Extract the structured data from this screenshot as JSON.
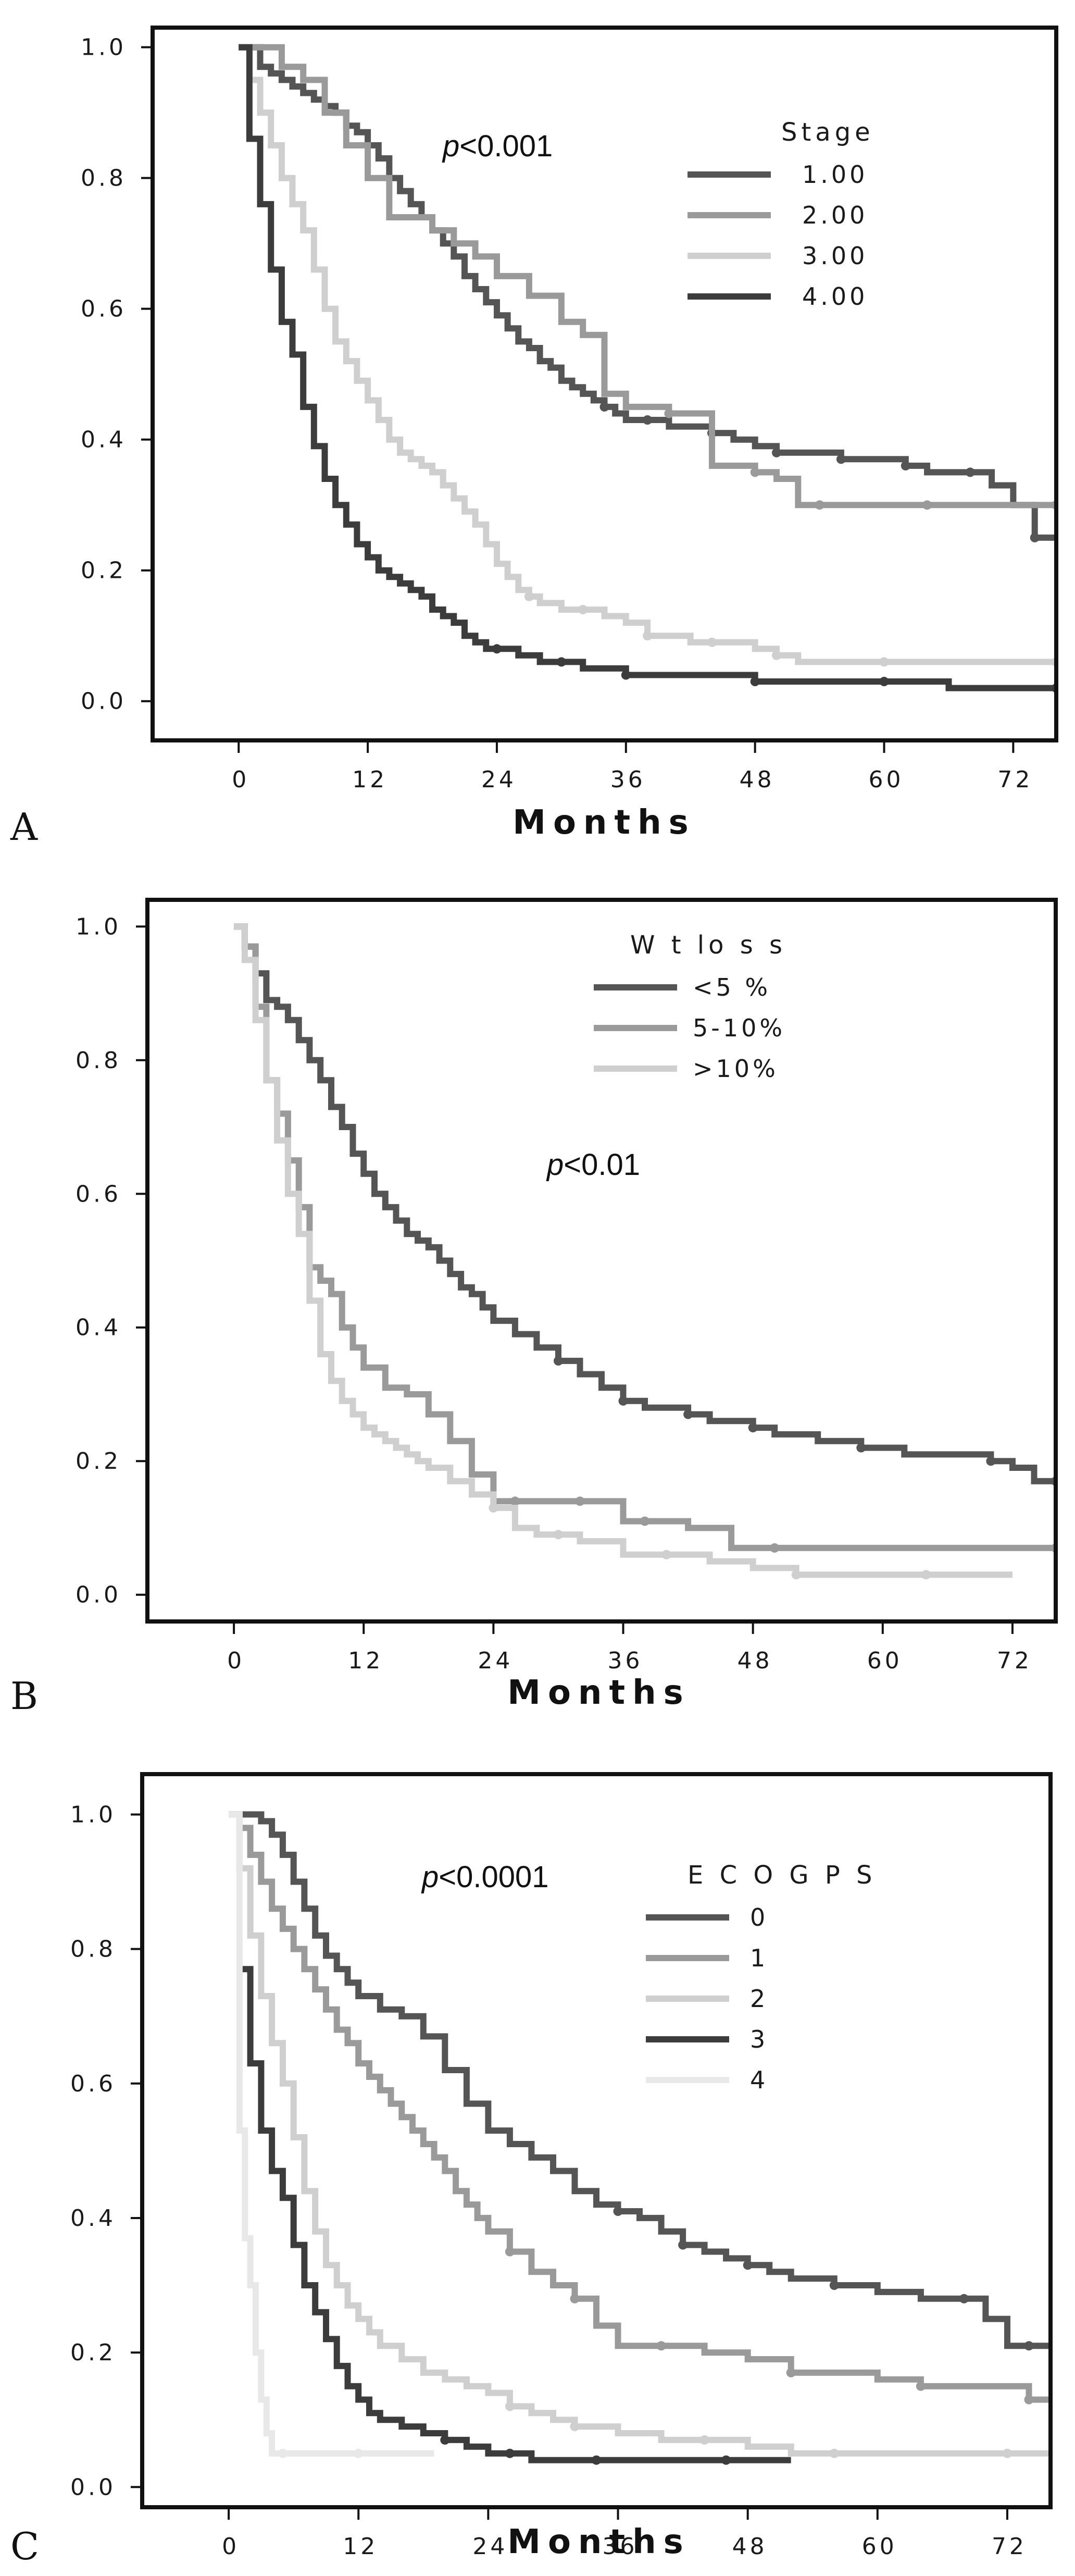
{
  "chart_data": [
    {
      "panel": "A",
      "type": "line",
      "xlabel": "Months",
      "ylabel": "",
      "xticks": [
        0,
        12,
        24,
        36,
        48,
        60,
        72
      ],
      "yticks": [
        "0.0",
        "0.2",
        "0.4",
        "0.6",
        "0.8",
        "1.0"
      ],
      "xlim": [
        -8,
        76
      ],
      "ylim": [
        -0.06,
        1.03
      ],
      "annotation": {
        "prefix": "p",
        "text": "<0.001"
      },
      "legend_title": "Stage",
      "series": [
        {
          "name": "1.00",
          "color": "#555555",
          "x": [
            0,
            2,
            3,
            4,
            5,
            6,
            7,
            8,
            9,
            10,
            11,
            12,
            13,
            14,
            15,
            16,
            17,
            18,
            19,
            20,
            21,
            22,
            23,
            24,
            25,
            26,
            27,
            28,
            29,
            30,
            31,
            32,
            33,
            34,
            35,
            36,
            38,
            40,
            42,
            44,
            46,
            48,
            50,
            52,
            54,
            56,
            58,
            60,
            62,
            64,
            66,
            68,
            70,
            72,
            74,
            76
          ],
          "y": [
            1.0,
            0.97,
            0.96,
            0.95,
            0.94,
            0.93,
            0.92,
            0.91,
            0.9,
            0.88,
            0.87,
            0.85,
            0.83,
            0.8,
            0.78,
            0.76,
            0.74,
            0.72,
            0.7,
            0.68,
            0.65,
            0.63,
            0.61,
            0.59,
            0.57,
            0.55,
            0.54,
            0.52,
            0.51,
            0.49,
            0.48,
            0.47,
            0.46,
            0.45,
            0.44,
            0.43,
            0.43,
            0.42,
            0.42,
            0.41,
            0.4,
            0.39,
            0.38,
            0.38,
            0.38,
            0.37,
            0.37,
            0.37,
            0.36,
            0.35,
            0.35,
            0.35,
            0.33,
            0.3,
            0.25,
            0.25
          ]
        },
        {
          "name": "2.00",
          "color": "#9a9a9a",
          "x": [
            0,
            3,
            4,
            6,
            8,
            10,
            12,
            14,
            16,
            18,
            20,
            22,
            24,
            27,
            30,
            32,
            34,
            36,
            40,
            44,
            46,
            48,
            50,
            52,
            54,
            56,
            60,
            64,
            68,
            72,
            76
          ],
          "y": [
            1.0,
            1.0,
            0.97,
            0.95,
            0.9,
            0.85,
            0.8,
            0.74,
            0.74,
            0.72,
            0.7,
            0.68,
            0.65,
            0.62,
            0.58,
            0.56,
            0.47,
            0.45,
            0.44,
            0.36,
            0.36,
            0.35,
            0.34,
            0.3,
            0.3,
            0.3,
            0.3,
            0.3,
            0.3,
            0.3,
            0.3
          ]
        },
        {
          "name": "3.00",
          "color": "#cfcfcf",
          "x": [
            0,
            1,
            2,
            3,
            4,
            5,
            6,
            7,
            8,
            9,
            10,
            11,
            12,
            13,
            14,
            15,
            16,
            17,
            18,
            19,
            20,
            21,
            22,
            23,
            24,
            25,
            26,
            27,
            28,
            30,
            32,
            34,
            36,
            38,
            40,
            42,
            44,
            46,
            48,
            50,
            52,
            56,
            60,
            66,
            72,
            76
          ],
          "y": [
            1.0,
            0.95,
            0.9,
            0.85,
            0.8,
            0.76,
            0.72,
            0.66,
            0.6,
            0.55,
            0.52,
            0.49,
            0.46,
            0.43,
            0.4,
            0.38,
            0.37,
            0.36,
            0.35,
            0.33,
            0.31,
            0.29,
            0.27,
            0.24,
            0.21,
            0.19,
            0.17,
            0.16,
            0.15,
            0.14,
            0.14,
            0.13,
            0.12,
            0.1,
            0.1,
            0.09,
            0.09,
            0.09,
            0.08,
            0.07,
            0.06,
            0.06,
            0.06,
            0.06,
            0.06,
            0.06
          ]
        },
        {
          "name": "4.00",
          "color": "#3c3c3c",
          "x": [
            0,
            1,
            2,
            3,
            4,
            5,
            6,
            7,
            8,
            9,
            10,
            11,
            12,
            13,
            14,
            15,
            16,
            17,
            18,
            19,
            20,
            21,
            22,
            23,
            24,
            26,
            28,
            30,
            32,
            34,
            36,
            40,
            44,
            48,
            52,
            56,
            60,
            66,
            72,
            76
          ],
          "y": [
            1.0,
            0.86,
            0.76,
            0.66,
            0.58,
            0.53,
            0.45,
            0.39,
            0.34,
            0.3,
            0.27,
            0.24,
            0.22,
            0.2,
            0.19,
            0.18,
            0.17,
            0.16,
            0.14,
            0.13,
            0.12,
            0.1,
            0.09,
            0.08,
            0.08,
            0.07,
            0.06,
            0.06,
            0.05,
            0.05,
            0.04,
            0.04,
            0.04,
            0.03,
            0.03,
            0.03,
            0.03,
            0.02,
            0.02,
            0.02
          ]
        }
      ]
    },
    {
      "panel": "B",
      "type": "line",
      "xlabel": "Months",
      "ylabel": "",
      "xticks": [
        0,
        12,
        24,
        36,
        48,
        60,
        72
      ],
      "yticks": [
        "0.0",
        "0.2",
        "0.4",
        "0.6",
        "0.8",
        "1.0"
      ],
      "xlim": [
        -8,
        76
      ],
      "ylim": [
        -0.04,
        1.04
      ],
      "annotation": {
        "prefix": "p",
        "text": "<0.01"
      },
      "legend_title": "W t lo s s",
      "series": [
        {
          "name": "<5 %",
          "color": "#555555",
          "x": [
            0,
            1,
            2,
            3,
            4,
            5,
            6,
            7,
            8,
            9,
            10,
            11,
            12,
            13,
            14,
            15,
            16,
            17,
            18,
            19,
            20,
            21,
            22,
            23,
            24,
            26,
            28,
            30,
            32,
            34,
            36,
            38,
            40,
            42,
            44,
            46,
            48,
            50,
            54,
            58,
            62,
            66,
            70,
            72,
            74,
            76
          ],
          "y": [
            1.0,
            0.97,
            0.93,
            0.89,
            0.88,
            0.86,
            0.83,
            0.8,
            0.77,
            0.73,
            0.7,
            0.66,
            0.63,
            0.6,
            0.58,
            0.56,
            0.54,
            0.53,
            0.52,
            0.5,
            0.48,
            0.46,
            0.45,
            0.43,
            0.41,
            0.39,
            0.37,
            0.35,
            0.33,
            0.31,
            0.29,
            0.28,
            0.28,
            0.27,
            0.26,
            0.26,
            0.25,
            0.24,
            0.23,
            0.22,
            0.21,
            0.21,
            0.2,
            0.19,
            0.17,
            0.17
          ]
        },
        {
          "name": "5-10%",
          "color": "#9a9a9a",
          "x": [
            0,
            1,
            2,
            3,
            4,
            5,
            6,
            7,
            8,
            9,
            10,
            11,
            12,
            14,
            16,
            18,
            20,
            22,
            24,
            26,
            28,
            30,
            32,
            34,
            36,
            38,
            42,
            46,
            50,
            60,
            70,
            76
          ],
          "y": [
            1.0,
            0.97,
            0.88,
            0.77,
            0.72,
            0.65,
            0.58,
            0.49,
            0.47,
            0.45,
            0.4,
            0.37,
            0.34,
            0.31,
            0.3,
            0.27,
            0.23,
            0.18,
            0.14,
            0.14,
            0.14,
            0.14,
            0.14,
            0.14,
            0.11,
            0.11,
            0.1,
            0.07,
            0.07,
            0.07,
            0.07,
            0.07
          ]
        },
        {
          "name": ">10%",
          "color": "#cfcfcf",
          "x": [
            0,
            1,
            2,
            3,
            4,
            5,
            6,
            7,
            8,
            9,
            10,
            11,
            12,
            13,
            14,
            15,
            16,
            17,
            18,
            20,
            22,
            24,
            26,
            28,
            30,
            32,
            36,
            40,
            44,
            48,
            52,
            56,
            60,
            64,
            68,
            72
          ],
          "y": [
            1.0,
            0.95,
            0.86,
            0.77,
            0.68,
            0.6,
            0.54,
            0.44,
            0.36,
            0.32,
            0.29,
            0.27,
            0.25,
            0.24,
            0.23,
            0.22,
            0.21,
            0.2,
            0.19,
            0.17,
            0.15,
            0.13,
            0.1,
            0.09,
            0.09,
            0.08,
            0.06,
            0.06,
            0.05,
            0.04,
            0.03,
            0.03,
            0.03,
            0.03,
            0.03,
            0.03
          ]
        }
      ]
    },
    {
      "panel": "C",
      "type": "line",
      "xlabel": "Months",
      "ylabel": "",
      "xticks": [
        0,
        12,
        24,
        36,
        48,
        60,
        72
      ],
      "yticks": [
        "0.0",
        "0.2",
        "0.4",
        "0.6",
        "0.8",
        "1.0"
      ],
      "xlim": [
        -8,
        76
      ],
      "ylim": [
        -0.03,
        1.06
      ],
      "annotation": {
        "prefix": "p",
        "text": "<0.0001"
      },
      "legend_title": "E C O G  P S",
      "series": [
        {
          "name": "0",
          "color": "#555555",
          "x": [
            0,
            1,
            2,
            3,
            4,
            5,
            6,
            7,
            8,
            9,
            10,
            11,
            12,
            14,
            16,
            18,
            20,
            22,
            24,
            26,
            28,
            30,
            32,
            34,
            36,
            38,
            40,
            42,
            44,
            46,
            48,
            50,
            52,
            56,
            60,
            64,
            68,
            70,
            72,
            74,
            76
          ],
          "y": [
            1.0,
            1.0,
            1.0,
            0.99,
            0.97,
            0.94,
            0.9,
            0.86,
            0.82,
            0.79,
            0.77,
            0.75,
            0.73,
            0.71,
            0.7,
            0.67,
            0.62,
            0.57,
            0.53,
            0.51,
            0.49,
            0.47,
            0.44,
            0.42,
            0.41,
            0.4,
            0.38,
            0.36,
            0.35,
            0.34,
            0.33,
            0.32,
            0.31,
            0.3,
            0.29,
            0.28,
            0.28,
            0.25,
            0.21,
            0.21,
            0.21
          ]
        },
        {
          "name": "1",
          "color": "#9a9a9a",
          "x": [
            0,
            1,
            2,
            3,
            4,
            5,
            6,
            7,
            8,
            9,
            10,
            11,
            12,
            13,
            14,
            15,
            16,
            17,
            18,
            19,
            20,
            21,
            22,
            23,
            24,
            26,
            28,
            30,
            32,
            34,
            36,
            40,
            44,
            48,
            52,
            56,
            60,
            64,
            68,
            72,
            74,
            76
          ],
          "y": [
            1.0,
            0.98,
            0.94,
            0.9,
            0.86,
            0.83,
            0.8,
            0.77,
            0.74,
            0.71,
            0.68,
            0.66,
            0.63,
            0.61,
            0.59,
            0.57,
            0.55,
            0.53,
            0.51,
            0.49,
            0.47,
            0.44,
            0.42,
            0.4,
            0.38,
            0.35,
            0.32,
            0.3,
            0.28,
            0.24,
            0.21,
            0.21,
            0.2,
            0.19,
            0.17,
            0.17,
            0.16,
            0.15,
            0.15,
            0.15,
            0.13,
            0.13
          ]
        },
        {
          "name": "2",
          "color": "#cfcfcf",
          "x": [
            0,
            1,
            2,
            3,
            4,
            5,
            6,
            7,
            8,
            9,
            10,
            11,
            12,
            13,
            14,
            16,
            18,
            20,
            22,
            24,
            26,
            28,
            30,
            32,
            36,
            40,
            44,
            48,
            52,
            56,
            60,
            66,
            72,
            76
          ],
          "y": [
            1.0,
            0.92,
            0.82,
            0.73,
            0.66,
            0.6,
            0.52,
            0.44,
            0.38,
            0.33,
            0.3,
            0.27,
            0.25,
            0.23,
            0.21,
            0.19,
            0.17,
            0.16,
            0.15,
            0.14,
            0.12,
            0.11,
            0.1,
            0.09,
            0.08,
            0.07,
            0.07,
            0.06,
            0.05,
            0.05,
            0.05,
            0.05,
            0.05,
            0.05
          ]
        },
        {
          "name": "3",
          "color": "#3c3c3c",
          "x": [
            1,
            2,
            3,
            4,
            5,
            6,
            7,
            8,
            9,
            10,
            11,
            12,
            13,
            14,
            16,
            18,
            20,
            22,
            24,
            26,
            28,
            30,
            34,
            38,
            42,
            46,
            50,
            52
          ],
          "y": [
            0.77,
            0.63,
            0.53,
            0.47,
            0.43,
            0.36,
            0.3,
            0.26,
            0.22,
            0.18,
            0.15,
            0.13,
            0.11,
            0.1,
            0.09,
            0.08,
            0.07,
            0.06,
            0.05,
            0.05,
            0.04,
            0.04,
            0.04,
            0.04,
            0.04,
            0.04,
            0.04,
            0.04
          ]
        },
        {
          "name": "4",
          "color": "#e8e8e8",
          "x": [
            0,
            1,
            1.5,
            2,
            2.5,
            3,
            3.5,
            4,
            5,
            6,
            8,
            12,
            16,
            19
          ],
          "y": [
            1.0,
            0.53,
            0.37,
            0.3,
            0.2,
            0.13,
            0.08,
            0.05,
            0.05,
            0.05,
            0.05,
            0.05,
            0.05,
            0.05
          ]
        }
      ]
    }
  ]
}
